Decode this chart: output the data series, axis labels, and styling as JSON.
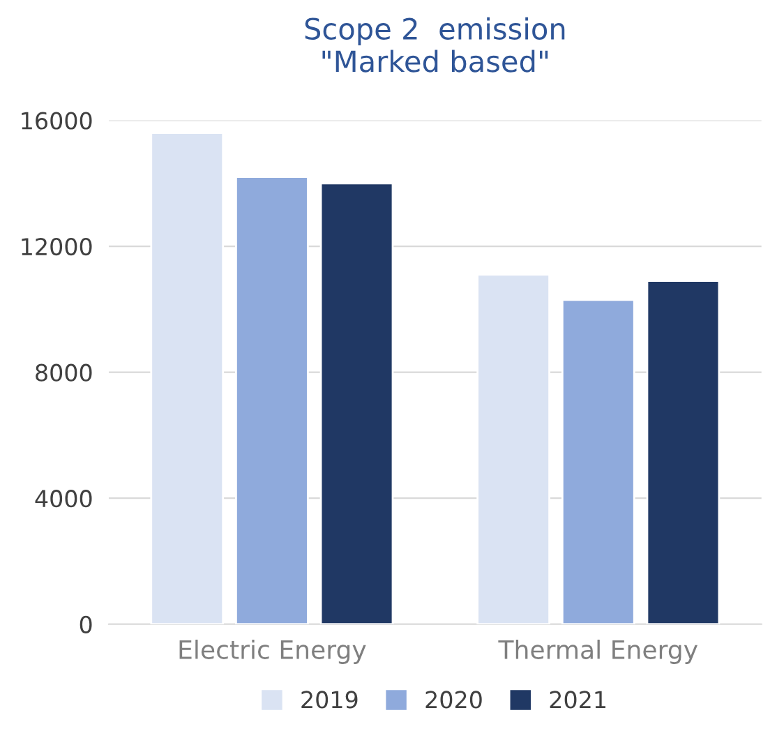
{
  "chart_data": {
    "type": "bar",
    "title": "Scope 2  emission\n\"Marked based\"",
    "categories": [
      "Electric Energy",
      "Thermal Energy"
    ],
    "series": [
      {
        "name": "2019",
        "color": "#dae3f3",
        "values": [
          15600,
          11100
        ]
      },
      {
        "name": "2020",
        "color": "#8faadc",
        "values": [
          14200,
          10300
        ]
      },
      {
        "name": "2021",
        "color": "#203864",
        "values": [
          14000,
          10900
        ]
      }
    ],
    "ylim": [
      0,
      16000
    ],
    "yticks": [
      0,
      4000,
      8000,
      12000,
      16000
    ],
    "grid": "y",
    "legend": "bottom"
  }
}
